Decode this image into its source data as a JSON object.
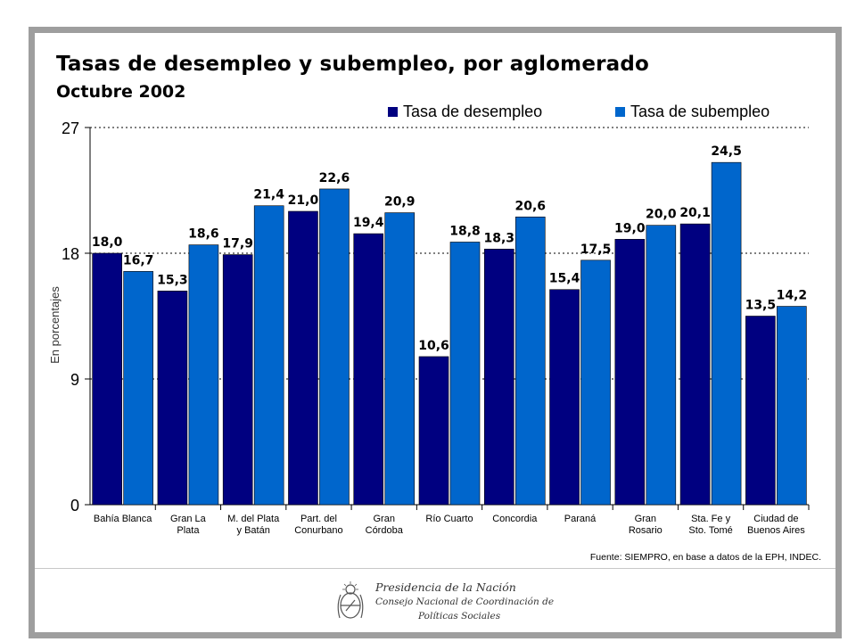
{
  "header": {
    "title": "Tasas de desempleo y subempleo, por aglomerado",
    "subtitle": "Octubre 2002"
  },
  "legend": {
    "items": [
      {
        "label": "Tasa de desempleo",
        "color": "#000080"
      },
      {
        "label": "Tasa de subempleo",
        "color": "#0066CC"
      }
    ]
  },
  "chart_data": {
    "type": "bar",
    "title": "Tasas de desempleo y subempleo, por aglomerado",
    "subtitle": "Octubre 2002",
    "ylabel": "En porcentajes",
    "xlabel": "",
    "ylim": [
      0,
      27
    ],
    "yticks": [
      0,
      9,
      18,
      27
    ],
    "grid": "horizontal-dashed",
    "legend_position": "top-right",
    "categories": [
      [
        "Bahía Blanca"
      ],
      [
        "Gran La",
        "Plata"
      ],
      [
        "M. del Plata",
        "y Batán"
      ],
      [
        "Part. del",
        "Conurbano"
      ],
      [
        "Gran",
        "Córdoba"
      ],
      [
        "Río Cuarto"
      ],
      [
        "Concordia"
      ],
      [
        "Paraná"
      ],
      [
        "Gran",
        "Rosario"
      ],
      [
        "Sta. Fe y",
        "Sto. Tomé"
      ],
      [
        "Ciudad de",
        "Buenos Aires"
      ]
    ],
    "series": [
      {
        "name": "Tasa de desempleo",
        "color": "#000080",
        "values": [
          18.0,
          15.3,
          17.9,
          21.0,
          19.4,
          10.6,
          18.3,
          15.4,
          19.0,
          20.1,
          13.5
        ],
        "labels": [
          "18,0",
          "15,3",
          "17,9",
          "21,0",
          "19,4",
          "10,6",
          "18,3",
          "15,4",
          "19,0",
          "20,1",
          "13,5"
        ]
      },
      {
        "name": "Tasa de subempleo",
        "color": "#0066CC",
        "values": [
          16.7,
          18.6,
          21.4,
          22.6,
          20.9,
          18.8,
          20.6,
          17.5,
          20.0,
          24.5,
          14.2
        ],
        "labels": [
          "16,7",
          "18,6",
          "21,4",
          "22,6",
          "20,9",
          "18,8",
          "20,6",
          "17,5",
          "20,0",
          "24,5",
          "14,2"
        ]
      }
    ]
  },
  "source": "Fuente: SIEMPRO, en base a datos de la EPH, INDEC.",
  "footer": {
    "line1": "Presidencia de la Nación",
    "line2": "Consejo Nacional de Coordinación de",
    "line3": "Políticas Sociales",
    "emblem": "argentina-coat-of-arms-icon"
  }
}
